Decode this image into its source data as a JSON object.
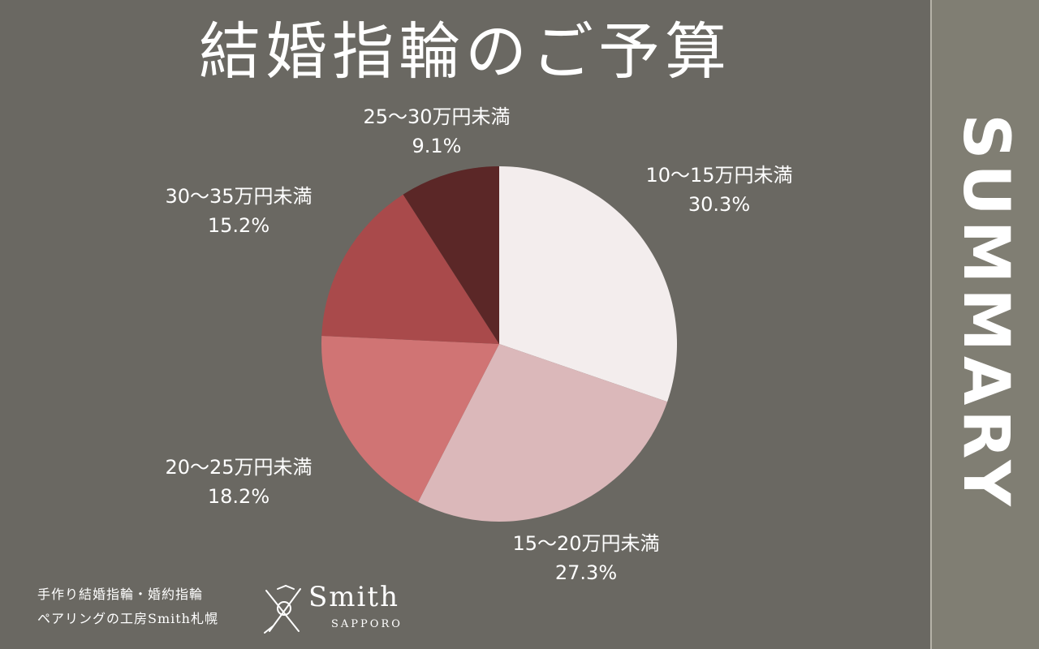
{
  "title": "結婚指輪のご予算",
  "side_label": "SUMMARY",
  "colors": {
    "background": "#6a6862",
    "side_bar": "#807e73"
  },
  "chart_data": {
    "type": "pie",
    "title": "結婚指輪のご予算",
    "slices": [
      {
        "label": "10〜15万円未満",
        "value": 30.3,
        "value_label": "30.3%",
        "color": "#f3eded"
      },
      {
        "label": "15〜20万円未満",
        "value": 27.3,
        "value_label": "27.3%",
        "color": "#dbb8ba"
      },
      {
        "label": "20〜25万円未満",
        "value": 18.2,
        "value_label": "18.2%",
        "color": "#d07474"
      },
      {
        "label": "30〜35万円未満",
        "value": 15.2,
        "value_label": "15.2%",
        "color": "#a94a4b"
      },
      {
        "label": "25〜30万円未満",
        "value": 9.1,
        "value_label": "9.1%",
        "color": "#5b2727"
      }
    ]
  },
  "footer": {
    "line1": "手作り結婚指輪・婚約指輪",
    "line2": "ペアリングの工房Smith札幌",
    "logo_name": "Smith",
    "logo_sub": "SAPPORO"
  }
}
